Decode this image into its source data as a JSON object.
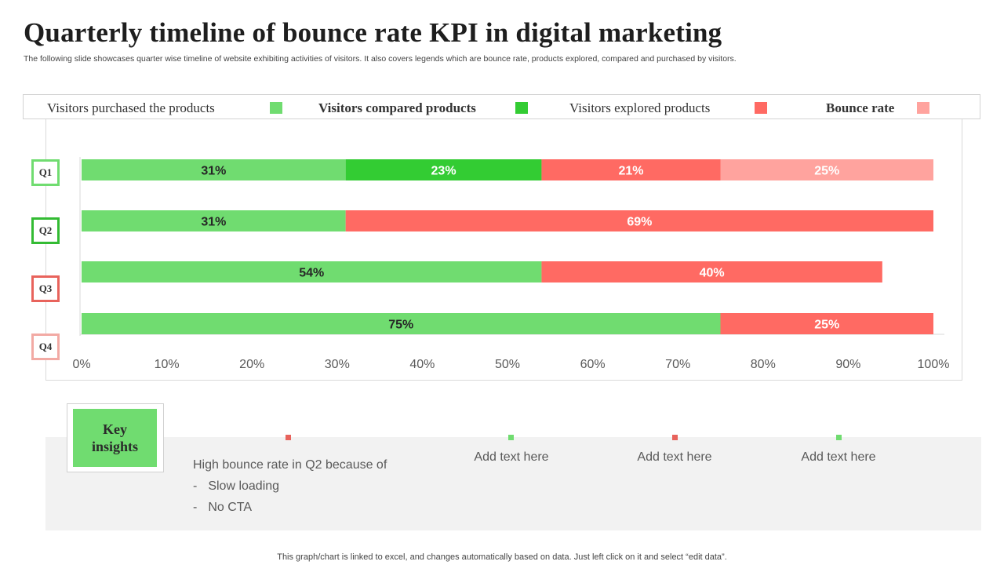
{
  "title": "Quarterly timeline of bounce rate KPI in digital marketing",
  "subtitle": "The following slide showcases quarter wise timeline of website exhibiting activities of visitors. It also covers legends which are bounce rate, products explored, compared and purchased by visitors.",
  "legend": [
    {
      "label": "Visitors purchased the products",
      "color": "#70dc70"
    },
    {
      "label": "Visitors compared products",
      "color": "#33cc33"
    },
    {
      "label": "Visitors explored products",
      "color": "#ff6a63"
    },
    {
      "label": "Bounce rate",
      "color": "#ffa39e"
    }
  ],
  "chart_data": {
    "type": "bar",
    "orientation": "horizontal",
    "stacked": true,
    "categories": [
      "Q1",
      "Q2",
      "Q3",
      "Q4"
    ],
    "series": [
      {
        "name": "Visitors purchased the products",
        "color": "#70dc70",
        "values": [
          31,
          31,
          54,
          75
        ]
      },
      {
        "name": "Visitors compared products",
        "color": "#33cc33",
        "values": [
          23,
          0,
          0,
          0
        ]
      },
      {
        "name": "Visitors explored products",
        "color": "#ff6a63",
        "values": [
          21,
          69,
          40,
          25
        ]
      },
      {
        "name": "Bounce rate",
        "color": "#ffa39e",
        "values": [
          25,
          0,
          0,
          0
        ]
      }
    ],
    "data_labels": [
      [
        "31%",
        "31%",
        "54%",
        "75%"
      ],
      [
        "23%",
        "",
        "",
        ""
      ],
      [
        "21%",
        "69%",
        "40%",
        "25%"
      ],
      [
        "25%",
        "",
        "",
        ""
      ]
    ],
    "xlim": [
      0,
      100
    ],
    "xticks": [
      "0%",
      "10%",
      "20%",
      "30%",
      "40%",
      "50%",
      "60%",
      "70%",
      "80%",
      "90%",
      "100%"
    ],
    "category_box_colors": [
      "#70dc70",
      "#33bb33",
      "#e8635c",
      "#f2aaa4"
    ],
    "grid": false
  },
  "key_insights": {
    "label_line1": "Key",
    "label_line2": "insights",
    "main_text": "High bounce rate in Q2 because of",
    "bullets": [
      {
        "dash": "-",
        "text": "Slow loading"
      },
      {
        "dash": "-",
        "text": "No CTA"
      }
    ],
    "placeholders": [
      "Add text here",
      "Add text here",
      "Add text here"
    ],
    "marker_colors": [
      "#e8635c",
      "#70dc70",
      "#e8635c",
      "#70dc70"
    ]
  },
  "footer": "This graph/chart is linked to excel, and changes automatically based on data. Just left click on it and select “edit data”."
}
